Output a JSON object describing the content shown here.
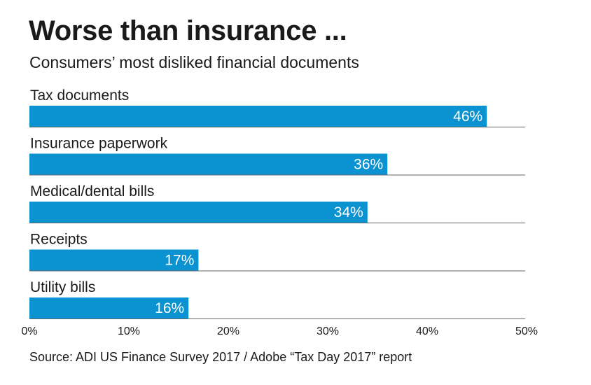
{
  "header": {
    "title": "Worse than insurance ...",
    "subtitle": "Consumers’ most disliked financial documents"
  },
  "footer": {
    "source": "Source: ADI US Finance Survey 2017 / Adobe “Tax Day 2017” report"
  },
  "colors": {
    "bar": "#0a93d0",
    "bar_label": "#ffffff",
    "separator": "#666666",
    "text": "#1a1a1a"
  },
  "chart_data": {
    "type": "bar",
    "orientation": "horizontal",
    "title": "Worse than insurance ...",
    "subtitle": "Consumers’ most disliked financial documents",
    "categories": [
      "Tax documents",
      "Insurance paperwork",
      "Medical/dental bills",
      "Receipts",
      "Utility bills"
    ],
    "values": [
      46,
      36,
      34,
      17,
      16
    ],
    "value_labels": [
      "46%",
      "36%",
      "34%",
      "17%",
      "16%"
    ],
    "xlim": [
      0,
      50
    ],
    "x_ticks": [
      0,
      10,
      20,
      30,
      40,
      50
    ],
    "x_tick_labels": [
      "0%",
      "10%",
      "20%",
      "30%",
      "40%",
      "50%"
    ],
    "grid": false,
    "legend": "none"
  }
}
